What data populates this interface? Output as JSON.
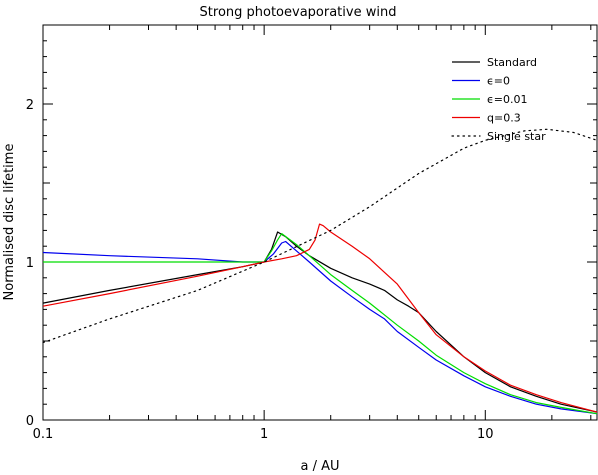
{
  "chart_data": {
    "type": "line",
    "title": "Strong photoevaporative wind",
    "xlabel": "a / AU",
    "ylabel": "Normalised disc lifetime",
    "x_scale": "log",
    "xlim": [
      0.1,
      32
    ],
    "ylim": [
      0,
      2.5
    ],
    "x_ticks": [
      {
        "value": 0.1,
        "label": "0.1"
      },
      {
        "value": 1,
        "label": "1"
      },
      {
        "value": 10,
        "label": "10"
      }
    ],
    "y_ticks": [
      {
        "value": 0,
        "label": "0"
      },
      {
        "value": 1,
        "label": "1"
      },
      {
        "value": 2,
        "label": "2"
      }
    ],
    "grid": false,
    "legend_position": "top-right",
    "series": [
      {
        "name": "Standard",
        "color": "#000000",
        "dash": "solid",
        "x": [
          0.1,
          0.2,
          0.5,
          0.8,
          1.0,
          1.08,
          1.15,
          1.25,
          1.4,
          1.6,
          2.0,
          2.5,
          3.0,
          3.5,
          4.0,
          4.5,
          5.0,
          6.0,
          8.0,
          10.0,
          13.0,
          17.0,
          22.0,
          32.0
        ],
        "values": [
          0.74,
          0.82,
          0.92,
          0.97,
          1.0,
          1.08,
          1.19,
          1.16,
          1.1,
          1.04,
          0.96,
          0.9,
          0.86,
          0.82,
          0.76,
          0.72,
          0.68,
          0.56,
          0.4,
          0.3,
          0.21,
          0.15,
          0.1,
          0.05
        ]
      },
      {
        "name": "ϵ=0",
        "color": "#0000ee",
        "dash": "solid",
        "x": [
          0.1,
          0.2,
          0.5,
          0.8,
          1.0,
          1.1,
          1.2,
          1.25,
          1.4,
          1.6,
          2.0,
          2.5,
          3.0,
          3.5,
          4.0,
          5.0,
          6.0,
          8.0,
          10.0,
          13.0,
          17.0,
          22.0,
          32.0
        ],
        "values": [
          1.06,
          1.04,
          1.02,
          1.0,
          1.0,
          1.05,
          1.12,
          1.13,
          1.07,
          1.0,
          0.88,
          0.78,
          0.7,
          0.64,
          0.56,
          0.46,
          0.38,
          0.28,
          0.21,
          0.15,
          0.1,
          0.07,
          0.04
        ]
      },
      {
        "name": "ϵ=0.01",
        "color": "#00dd00",
        "dash": "solid",
        "x": [
          0.1,
          0.2,
          0.5,
          0.8,
          1.0,
          1.08,
          1.15,
          1.2,
          1.4,
          1.6,
          2.0,
          2.5,
          3.0,
          4.0,
          5.0,
          6.0,
          8.0,
          10.0,
          13.0,
          17.0,
          22.0,
          32.0
        ],
        "values": [
          1.0,
          1.0,
          1.0,
          1.0,
          1.0,
          1.07,
          1.14,
          1.18,
          1.11,
          1.04,
          0.92,
          0.82,
          0.74,
          0.6,
          0.5,
          0.41,
          0.3,
          0.23,
          0.16,
          0.11,
          0.08,
          0.04
        ]
      },
      {
        "name": "q=0.3",
        "color": "#ee0000",
        "dash": "solid",
        "x": [
          0.1,
          0.2,
          0.5,
          0.8,
          1.0,
          1.2,
          1.4,
          1.6,
          1.7,
          1.78,
          1.85,
          2.0,
          2.5,
          3.0,
          4.0,
          5.0,
          6.0,
          8.0,
          10.0,
          13.0,
          17.0,
          22.0,
          32.0
        ],
        "values": [
          0.72,
          0.8,
          0.91,
          0.97,
          1.0,
          1.02,
          1.04,
          1.08,
          1.14,
          1.24,
          1.23,
          1.19,
          1.1,
          1.02,
          0.86,
          0.68,
          0.54,
          0.4,
          0.31,
          0.22,
          0.16,
          0.11,
          0.05
        ]
      },
      {
        "name": "Single star",
        "color": "#000000",
        "dash": "dotted",
        "x": [
          0.1,
          0.2,
          0.5,
          1.0,
          2.0,
          3.0,
          5.0,
          8.0,
          10.0,
          15.0,
          19.0,
          25.0,
          32.0
        ],
        "values": [
          0.49,
          0.64,
          0.82,
          1.0,
          1.2,
          1.35,
          1.56,
          1.72,
          1.77,
          1.83,
          1.84,
          1.82,
          1.77
        ]
      }
    ]
  }
}
